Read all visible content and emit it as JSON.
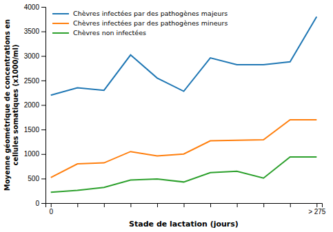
{
  "chart_data": {
    "type": "line",
    "x_label": "Stade de lactation (jours)",
    "y_label": "Moyenne géométrique de concentrations en\ncellules somatiques (x1000/ml)",
    "categories": [
      "0",
      null,
      null,
      null,
      null,
      null,
      null,
      null,
      null,
      null,
      "> 275"
    ],
    "series": [
      {
        "name": "Chèvres  infectées par des pathogènes majeurs",
        "values": [
          2200,
          2350,
          2300,
          3020,
          2550,
          2280,
          2960,
          2820,
          2820,
          2880,
          3800
        ]
      },
      {
        "name": "Chèvres  infectées par des pathogènes mineurs",
        "values": [
          520,
          800,
          820,
          1050,
          960,
          1000,
          1270,
          1280,
          1290,
          1700,
          1700
        ]
      },
      {
        "name": "Chèvres non infectées",
        "values": [
          220,
          260,
          320,
          470,
          490,
          430,
          620,
          650,
          510,
          940,
          940
        ]
      }
    ],
    "ylim": [
      0,
      4000
    ],
    "yticks": [
      0,
      500,
      1000,
      1500,
      2000,
      2500,
      3000,
      3500,
      4000
    ],
    "legend": "upper left",
    "grid": false
  }
}
